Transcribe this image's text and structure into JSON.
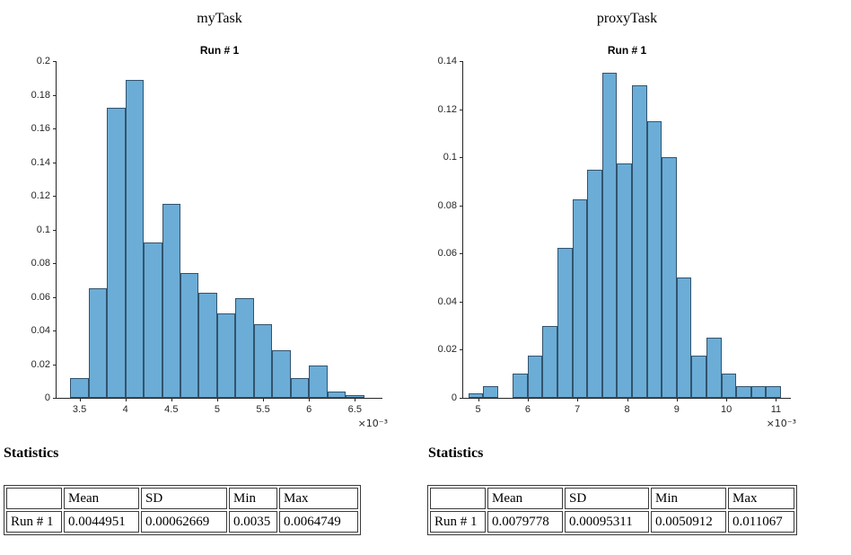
{
  "panels": [
    {
      "figure_title": "myTask",
      "axes_title": "Run # 1",
      "statistics_heading": "Statistics",
      "table": {
        "headers": [
          "",
          "Mean",
          "SD",
          "Min",
          "Max"
        ],
        "rows": [
          [
            "Run # 1",
            "0.0044951",
            "0.00062669",
            "0.0035",
            "0.0064749"
          ]
        ]
      }
    },
    {
      "figure_title": "proxyTask",
      "axes_title": "Run # 1",
      "statistics_heading": "Statistics",
      "table": {
        "headers": [
          "",
          "Mean",
          "SD",
          "Min",
          "Max"
        ],
        "rows": [
          [
            "Run # 1",
            "0.0079778",
            "0.00095311",
            "0.0050912",
            "0.011067"
          ]
        ]
      }
    }
  ],
  "chart_data": [
    {
      "type": "bar",
      "subtype": "histogram",
      "figure_title": "myTask",
      "title": "Run # 1",
      "xlabel": "",
      "ylabel": "",
      "bin_start": 3.4,
      "bin_width": 0.2,
      "values": [
        0.0115,
        0.065,
        0.1725,
        0.189,
        0.0925,
        0.115,
        0.074,
        0.0625,
        0.05,
        0.059,
        0.044,
        0.0285,
        0.0115,
        0.019,
        0.0035,
        0.0015
      ],
      "xlim": [
        3.25,
        6.8
      ],
      "ylim": [
        0,
        0.2
      ],
      "xticks": [
        3.5,
        4,
        4.5,
        5,
        5.5,
        6,
        6.5
      ],
      "yticks": [
        0,
        0.02,
        0.04,
        0.06,
        0.08,
        0.1,
        0.12,
        0.14,
        0.16,
        0.18,
        0.2
      ],
      "x_exponent_label": "×10⁻³",
      "x_unit_scale": "1e-3",
      "grid": false,
      "bar_face": "#6badd6",
      "bar_edge": "#33536e",
      "axis_color": "#262626"
    },
    {
      "type": "bar",
      "subtype": "histogram",
      "figure_title": "proxyTask",
      "title": "Run # 1",
      "xlabel": "",
      "ylabel": "",
      "bin_start": 4.8,
      "bin_width": 0.3,
      "values": [
        0.002,
        0.005,
        0,
        0.01,
        0.0175,
        0.03,
        0.0625,
        0.0825,
        0.095,
        0.135,
        0.0975,
        0.13,
        0.115,
        0.1,
        0.05,
        0.0175,
        0.025,
        0.01,
        0.005,
        0.005,
        0.005
      ],
      "xlim": [
        4.7,
        11.3
      ],
      "ylim": [
        0,
        0.14
      ],
      "xticks": [
        5,
        6,
        7,
        8,
        9,
        10,
        11
      ],
      "yticks": [
        0,
        0.02,
        0.04,
        0.06,
        0.08,
        0.1,
        0.12,
        0.14
      ],
      "x_exponent_label": "×10⁻³",
      "x_unit_scale": "1e-3",
      "grid": false,
      "bar_face": "#6badd6",
      "bar_edge": "#33536e",
      "axis_color": "#262626"
    }
  ]
}
